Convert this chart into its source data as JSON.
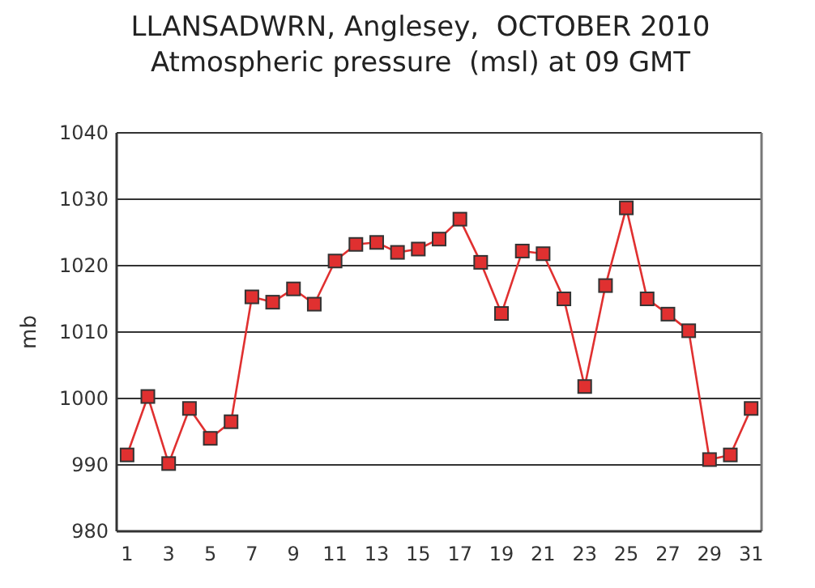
{
  "chart_data": {
    "type": "line",
    "title": "LLANSADWRN, Anglesey,  OCTOBER 2010",
    "subtitle": "Atmospheric pressure  (msl) at 09 GMT",
    "ylabel": "mb",
    "x": [
      1,
      2,
      3,
      4,
      5,
      6,
      7,
      8,
      9,
      10,
      11,
      12,
      13,
      14,
      15,
      16,
      17,
      18,
      19,
      20,
      21,
      22,
      23,
      24,
      25,
      26,
      27,
      28,
      29,
      30,
      31
    ],
    "series": [
      {
        "color": "#e03030",
        "values": [
          991.5,
          1000.3,
          990.2,
          998.5,
          994,
          996.5,
          1015.3,
          1014.5,
          1016.5,
          1014.2,
          1020.7,
          1023.2,
          1023.5,
          1022,
          1022.5,
          1024,
          1027,
          1020.5,
          1012.8,
          1022.2,
          1021.8,
          1015,
          1001.8,
          1017,
          1028.7,
          1015,
          1012.7,
          1010.2,
          990.8,
          991.5,
          998.5
        ]
      }
    ],
    "xlim": [
      0.5,
      31.5
    ],
    "xticks": [
      1,
      3,
      5,
      7,
      9,
      11,
      13,
      15,
      17,
      19,
      21,
      23,
      25,
      27,
      29,
      31
    ],
    "ylim": [
      980,
      1040
    ],
    "yticks": [
      980,
      990,
      1000,
      1010,
      1020,
      1030,
      1040
    ],
    "grid": "y",
    "marker": "square",
    "line_style": "solid"
  }
}
